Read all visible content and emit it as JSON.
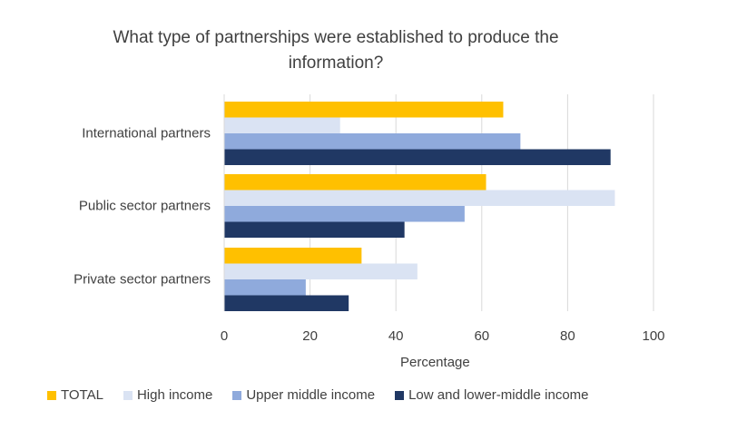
{
  "chart_data": {
    "type": "bar",
    "orientation": "horizontal",
    "title": "What type of partnerships were established to produce the information?",
    "title_lines": [
      "What type of partnerships were established to produce the",
      "information?"
    ],
    "categories": [
      "International partners",
      "Public sector partners",
      "Private sector partners"
    ],
    "series": [
      {
        "name": "TOTAL",
        "color": "#FFC000",
        "values": [
          65,
          61,
          32
        ]
      },
      {
        "name": "High income",
        "color": "#DAE3F3",
        "values": [
          27,
          91,
          45
        ]
      },
      {
        "name": "Upper middle income",
        "color": "#8FAADC",
        "values": [
          69,
          56,
          19
        ]
      },
      {
        "name": "Low and lower-middle income",
        "color": "#203864",
        "values": [
          90,
          42,
          29
        ]
      }
    ],
    "xlabel": "Percentage",
    "ylabel": "",
    "xlim": [
      0,
      100
    ],
    "xticks": [
      0,
      20,
      40,
      60,
      80,
      100
    ],
    "xtick_labels": [
      "0",
      "20",
      "40",
      "60",
      "80",
      "100"
    ],
    "grid": "vertical",
    "gridline_color": "#D9D9D9",
    "legend_position": "bottom"
  }
}
